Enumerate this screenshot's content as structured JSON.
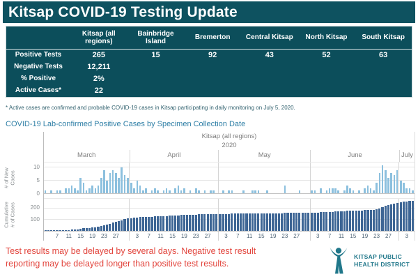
{
  "header": {
    "title": "Kitsap COVID-19 Testing Update"
  },
  "table": {
    "corner_label": "",
    "columns": [
      "Kitsap (all regions)",
      "Bainbridge Island",
      "Bremerton",
      "Central Kitsap",
      "North Kitsap",
      "South Kitsap"
    ],
    "rows": [
      {
        "label": "Positive Tests",
        "values": [
          "265",
          "15",
          "92",
          "43",
          "52",
          "63"
        ]
      },
      {
        "label": "Negative Tests",
        "values": [
          "12,211",
          "",
          "",
          "",
          "",
          ""
        ]
      },
      {
        "label": "% Positive",
        "values": [
          "2%",
          "",
          "",
          "",
          "",
          ""
        ]
      },
      {
        "label": "Active Cases*",
        "values": [
          "22",
          "",
          "",
          "",
          "",
          ""
        ]
      }
    ]
  },
  "footnote": "* Active cases are confirmed and probable COVID-19 cases in Kitsap participating in daily monitoring on July 5, 2020.",
  "chart_data": {
    "type": "bar",
    "title": "COVID-19 Lab-confirmed Positive Cases by Specimen Collection Date",
    "region_label": "Kitsap (all regions)",
    "year_label": "2020",
    "grid": true,
    "legend": "none",
    "panels": [
      {
        "name": "new-cases",
        "ylabel": "# of New\nCases",
        "yticks": [
          0,
          5,
          10
        ],
        "ymax": 12,
        "bar_color": "#8cc0de"
      },
      {
        "name": "cumulative",
        "ylabel": "Cumulative\n# of Cases",
        "yticks": [
          100,
          200
        ],
        "ymax": 285,
        "bar_color": "#3e6695"
      }
    ],
    "months": [
      {
        "name": "March",
        "start_day": 3,
        "tick_days": [
          7,
          11,
          15,
          19,
          23,
          27
        ],
        "new_cases": [
          1,
          0,
          1,
          0,
          1,
          1,
          0,
          2,
          2,
          3,
          2,
          1,
          6,
          4,
          1,
          2,
          3,
          2,
          3,
          6,
          9,
          5,
          8,
          9,
          8,
          6,
          10,
          7,
          6
        ]
      },
      {
        "name": "April",
        "start_day": 1,
        "tick_days": [
          3,
          7,
          11,
          15,
          19,
          23,
          27
        ],
        "new_cases": [
          4,
          2,
          5,
          3,
          1,
          2,
          0,
          1,
          2,
          1,
          0,
          1,
          2,
          1,
          0,
          2,
          3,
          1,
          2,
          0,
          1,
          0,
          2,
          1,
          0,
          1,
          0,
          1,
          1,
          0
        ]
      },
      {
        "name": "May",
        "start_day": 1,
        "tick_days": [
          3,
          7,
          11,
          15,
          19,
          23,
          27
        ],
        "new_cases": [
          0,
          1,
          0,
          1,
          1,
          0,
          0,
          0,
          1,
          0,
          0,
          1,
          1,
          1,
          0,
          0,
          1,
          0,
          0,
          0,
          0,
          0,
          3,
          0,
          0,
          0,
          0,
          1,
          0,
          0,
          0
        ]
      },
      {
        "name": "June",
        "start_day": 1,
        "tick_days": [
          3,
          7,
          11,
          15,
          19,
          23,
          27
        ],
        "new_cases": [
          1,
          1,
          0,
          2,
          0,
          1,
          2,
          2,
          2,
          1,
          0,
          1,
          3,
          2,
          1,
          0,
          1,
          0,
          2,
          3,
          2,
          1,
          4,
          8,
          11,
          9,
          6,
          8,
          7,
          9
        ]
      },
      {
        "name": "July",
        "start_day": 1,
        "tick_days": [
          3
        ],
        "new_cases": [
          5,
          4,
          2,
          2,
          1
        ]
      }
    ],
    "total_cumulative": 265
  },
  "warning": "Test results may be delayed by several days. Negative test result reporting may be delayed longer than positive test results.",
  "logo": {
    "text": "KITSAP PUBLIC\nHEALTH DISTRICT"
  },
  "colors": {
    "banner_bg": "#0e5260",
    "table_bg": "#0c4e5b",
    "chart_title": "#2f7fa6",
    "warning_red": "#e2443c",
    "logo_teal": "#20778a",
    "new_cases_bar": "#8cc0de",
    "cumulative_bar": "#3e6695"
  }
}
